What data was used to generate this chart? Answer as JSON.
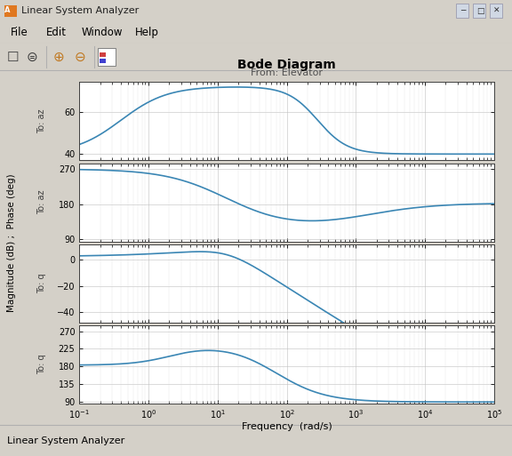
{
  "title": "Bode Diagram",
  "subtitle": "From: Elevator",
  "xlabel": "Frequency  (rad/s)",
  "ylabel_combined": "Magnitude (dB) ; Phase (deg)",
  "freq_range": [
    0.1,
    100000
  ],
  "window_title": "Linear System Analyzer",
  "status_bar": "Linear System Analyzer",
  "menu_items": [
    "File",
    "Edit",
    "Window",
    "Help"
  ],
  "line_color": "#3a86b4",
  "titlebar_color": "#c8d8e8",
  "window_bg": "#d4d0c8",
  "panel_bg": "#d8d8d8",
  "plot_bg": "#ffffff",
  "az_mag_ylim": [
    37,
    74
  ],
  "az_mag_yticks": [
    40,
    60
  ],
  "az_phase_ylim": [
    85,
    285
  ],
  "az_phase_yticks": [
    90,
    180,
    270
  ],
  "q_mag_ylim": [
    -48,
    12
  ],
  "q_mag_yticks": [
    -40,
    -20,
    0
  ],
  "q_phase_ylim": [
    85,
    285
  ],
  "q_phase_yticks": [
    90,
    135,
    180,
    225,
    270
  ]
}
